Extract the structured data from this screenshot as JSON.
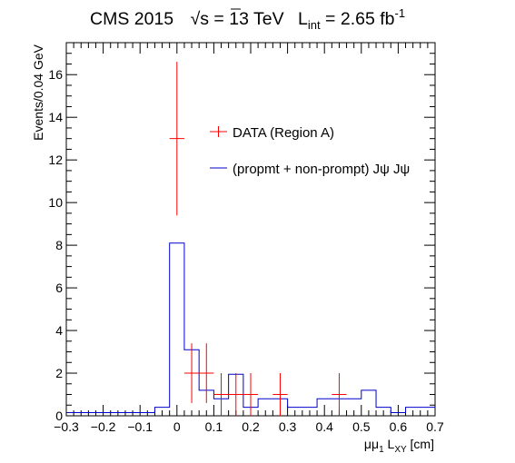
{
  "chart_data": {
    "type": "histogram",
    "title": {
      "experiment": "CMS 2015",
      "energy_pre": "√",
      "energy_s": "s",
      "energy_post": " = 13 TeV",
      "lumi_pre": "L",
      "lumi_sub": "int",
      "lumi_post": " = 2.65 fb",
      "lumi_sup": "-1"
    },
    "ylabel": "Events/0.04 GeV",
    "xlabel": {
      "main": "μμ",
      "sub1": "1",
      "mid": " L",
      "sub2": "XY",
      "unit": " [cm]"
    },
    "xlim": [
      -0.3,
      0.7
    ],
    "ylim": [
      0,
      17.5
    ],
    "xticks": [
      -0.3,
      -0.2,
      -0.1,
      0,
      0.1,
      0.2,
      0.3,
      0.4,
      0.5,
      0.6,
      0.7
    ],
    "xtick_labels": [
      "−0.3",
      "−0.2",
      "−0.1",
      "0",
      "0.1",
      "0.2",
      "0.3",
      "0.4",
      "0.5",
      "0.6",
      "0.7"
    ],
    "yticks": [
      0,
      2,
      4,
      6,
      8,
      10,
      12,
      14,
      16
    ],
    "legend": {
      "position": "upper-right",
      "entries": [
        {
          "label": "DATA (Region A)",
          "color": "#ff0000"
        },
        {
          "label": "(propmt + non-prompt) Jψ Jψ",
          "color": "#0000cc"
        }
      ]
    },
    "series": [
      {
        "name": "DATA (Region A)",
        "style": "points-with-error-bars",
        "color": "#ff0000",
        "points": [
          {
            "x": 0.0,
            "y": 13,
            "xerr": 0.02,
            "ylo": 9.4,
            "yhi": 16.6
          },
          {
            "x": 0.04,
            "y": 2,
            "xerr": 0.02,
            "ylo": 0.6,
            "yhi": 3.4
          },
          {
            "x": 0.08,
            "y": 2,
            "xerr": 0.02,
            "ylo": 0.6,
            "yhi": 3.4
          },
          {
            "x": 0.12,
            "y": 1,
            "xerr": 0.02,
            "ylo": 0.0,
            "yhi": 2.0
          },
          {
            "x": 0.16,
            "y": 1,
            "xerr": 0.02,
            "ylo": 0.0,
            "yhi": 2.0
          },
          {
            "x": 0.2,
            "y": 1,
            "xerr": 0.02,
            "ylo": 0.0,
            "yhi": 2.0
          },
          {
            "x": 0.28,
            "y": 1,
            "xerr": 0.02,
            "ylo": 0.0,
            "yhi": 2.0
          },
          {
            "x": 0.44,
            "y": 1,
            "xerr": 0.02,
            "ylo": 0.0,
            "yhi": 2.0
          }
        ]
      },
      {
        "name": "(propmt + non-prompt) Jψ Jψ",
        "style": "step",
        "color": "#0000cc",
        "bin_edges": [
          -0.3,
          -0.22,
          -0.14,
          -0.06,
          -0.02,
          0.02,
          0.06,
          0.1,
          0.14,
          0.18,
          0.22,
          0.26,
          0.3,
          0.34,
          0.38,
          0.42,
          0.46,
          0.5,
          0.54,
          0.58,
          0.62,
          0.66,
          0.7
        ],
        "values": [
          0.15,
          0.15,
          0.15,
          0.4,
          8.1,
          3.1,
          1.2,
          0.8,
          1.95,
          0.4,
          0.8,
          0.8,
          0.4,
          0.4,
          0.8,
          0.8,
          0.8,
          1.2,
          0.4,
          0.15,
          0.4,
          0.4
        ]
      }
    ]
  }
}
